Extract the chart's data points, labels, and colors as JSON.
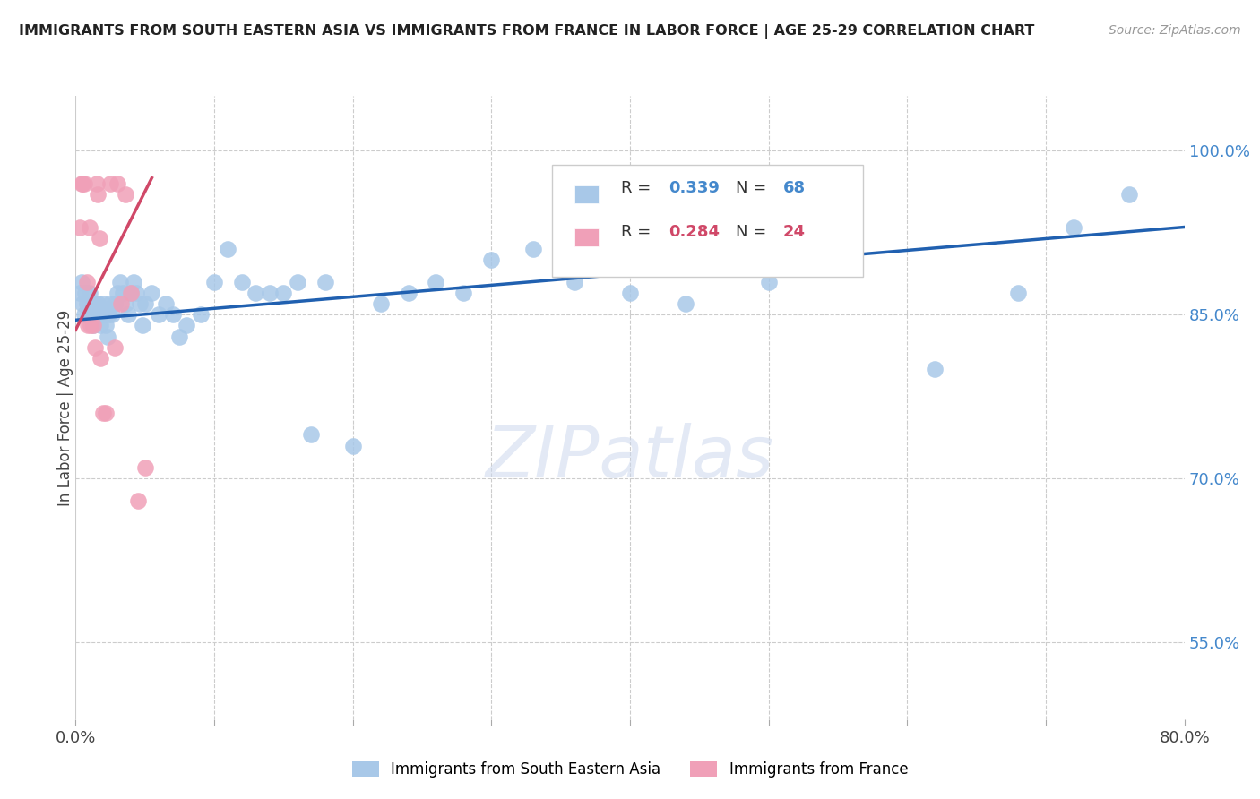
{
  "title": "IMMIGRANTS FROM SOUTH EASTERN ASIA VS IMMIGRANTS FROM FRANCE IN LABOR FORCE | AGE 25-29 CORRELATION CHART",
  "source": "Source: ZipAtlas.com",
  "ylabel": "In Labor Force | Age 25-29",
  "xmin": 0.0,
  "xmax": 0.8,
  "ymin": 0.48,
  "ymax": 1.05,
  "yticks": [
    0.55,
    0.7,
    0.85,
    1.0
  ],
  "ytick_labels": [
    "55.0%",
    "70.0%",
    "85.0%",
    "100.0%"
  ],
  "blue_R": "0.339",
  "blue_N": "68",
  "pink_R": "0.284",
  "pink_N": "24",
  "blue_color": "#a8c8e8",
  "pink_color": "#f0a0b8",
  "blue_line_color": "#2060b0",
  "pink_line_color": "#d04868",
  "legend_label_blue": "Immigrants from South Eastern Asia",
  "legend_label_pink": "Immigrants from France",
  "blue_scatter_x": [
    0.003,
    0.004,
    0.005,
    0.006,
    0.007,
    0.008,
    0.009,
    0.01,
    0.011,
    0.012,
    0.013,
    0.014,
    0.015,
    0.016,
    0.017,
    0.018,
    0.019,
    0.02,
    0.021,
    0.022,
    0.023,
    0.024,
    0.025,
    0.026,
    0.028,
    0.03,
    0.032,
    0.034,
    0.036,
    0.038,
    0.04,
    0.042,
    0.044,
    0.046,
    0.048,
    0.05,
    0.055,
    0.06,
    0.065,
    0.07,
    0.075,
    0.08,
    0.09,
    0.1,
    0.11,
    0.12,
    0.13,
    0.14,
    0.15,
    0.16,
    0.17,
    0.18,
    0.2,
    0.22,
    0.24,
    0.26,
    0.28,
    0.3,
    0.33,
    0.36,
    0.4,
    0.44,
    0.5,
    0.56,
    0.62,
    0.68,
    0.72,
    0.76
  ],
  "blue_scatter_y": [
    0.87,
    0.88,
    0.86,
    0.85,
    0.87,
    0.86,
    0.85,
    0.87,
    0.86,
    0.85,
    0.84,
    0.86,
    0.85,
    0.86,
    0.85,
    0.84,
    0.85,
    0.86,
    0.85,
    0.84,
    0.83,
    0.85,
    0.86,
    0.85,
    0.86,
    0.87,
    0.88,
    0.87,
    0.86,
    0.85,
    0.87,
    0.88,
    0.87,
    0.86,
    0.84,
    0.86,
    0.87,
    0.85,
    0.86,
    0.85,
    0.83,
    0.84,
    0.85,
    0.88,
    0.91,
    0.88,
    0.87,
    0.87,
    0.87,
    0.88,
    0.74,
    0.88,
    0.73,
    0.86,
    0.87,
    0.88,
    0.87,
    0.9,
    0.91,
    0.88,
    0.87,
    0.86,
    0.88,
    0.91,
    0.8,
    0.87,
    0.93,
    0.96
  ],
  "pink_scatter_x": [
    0.003,
    0.004,
    0.005,
    0.006,
    0.008,
    0.009,
    0.01,
    0.011,
    0.013,
    0.014,
    0.015,
    0.016,
    0.017,
    0.018,
    0.02,
    0.022,
    0.025,
    0.028,
    0.03,
    0.033,
    0.036,
    0.04,
    0.045,
    0.05
  ],
  "pink_scatter_y": [
    0.93,
    0.97,
    0.97,
    0.97,
    0.88,
    0.84,
    0.93,
    0.84,
    0.84,
    0.82,
    0.97,
    0.96,
    0.92,
    0.81,
    0.76,
    0.76,
    0.97,
    0.82,
    0.97,
    0.86,
    0.96,
    0.87,
    0.68,
    0.71
  ],
  "background_color": "#ffffff",
  "grid_color": "#cccccc"
}
